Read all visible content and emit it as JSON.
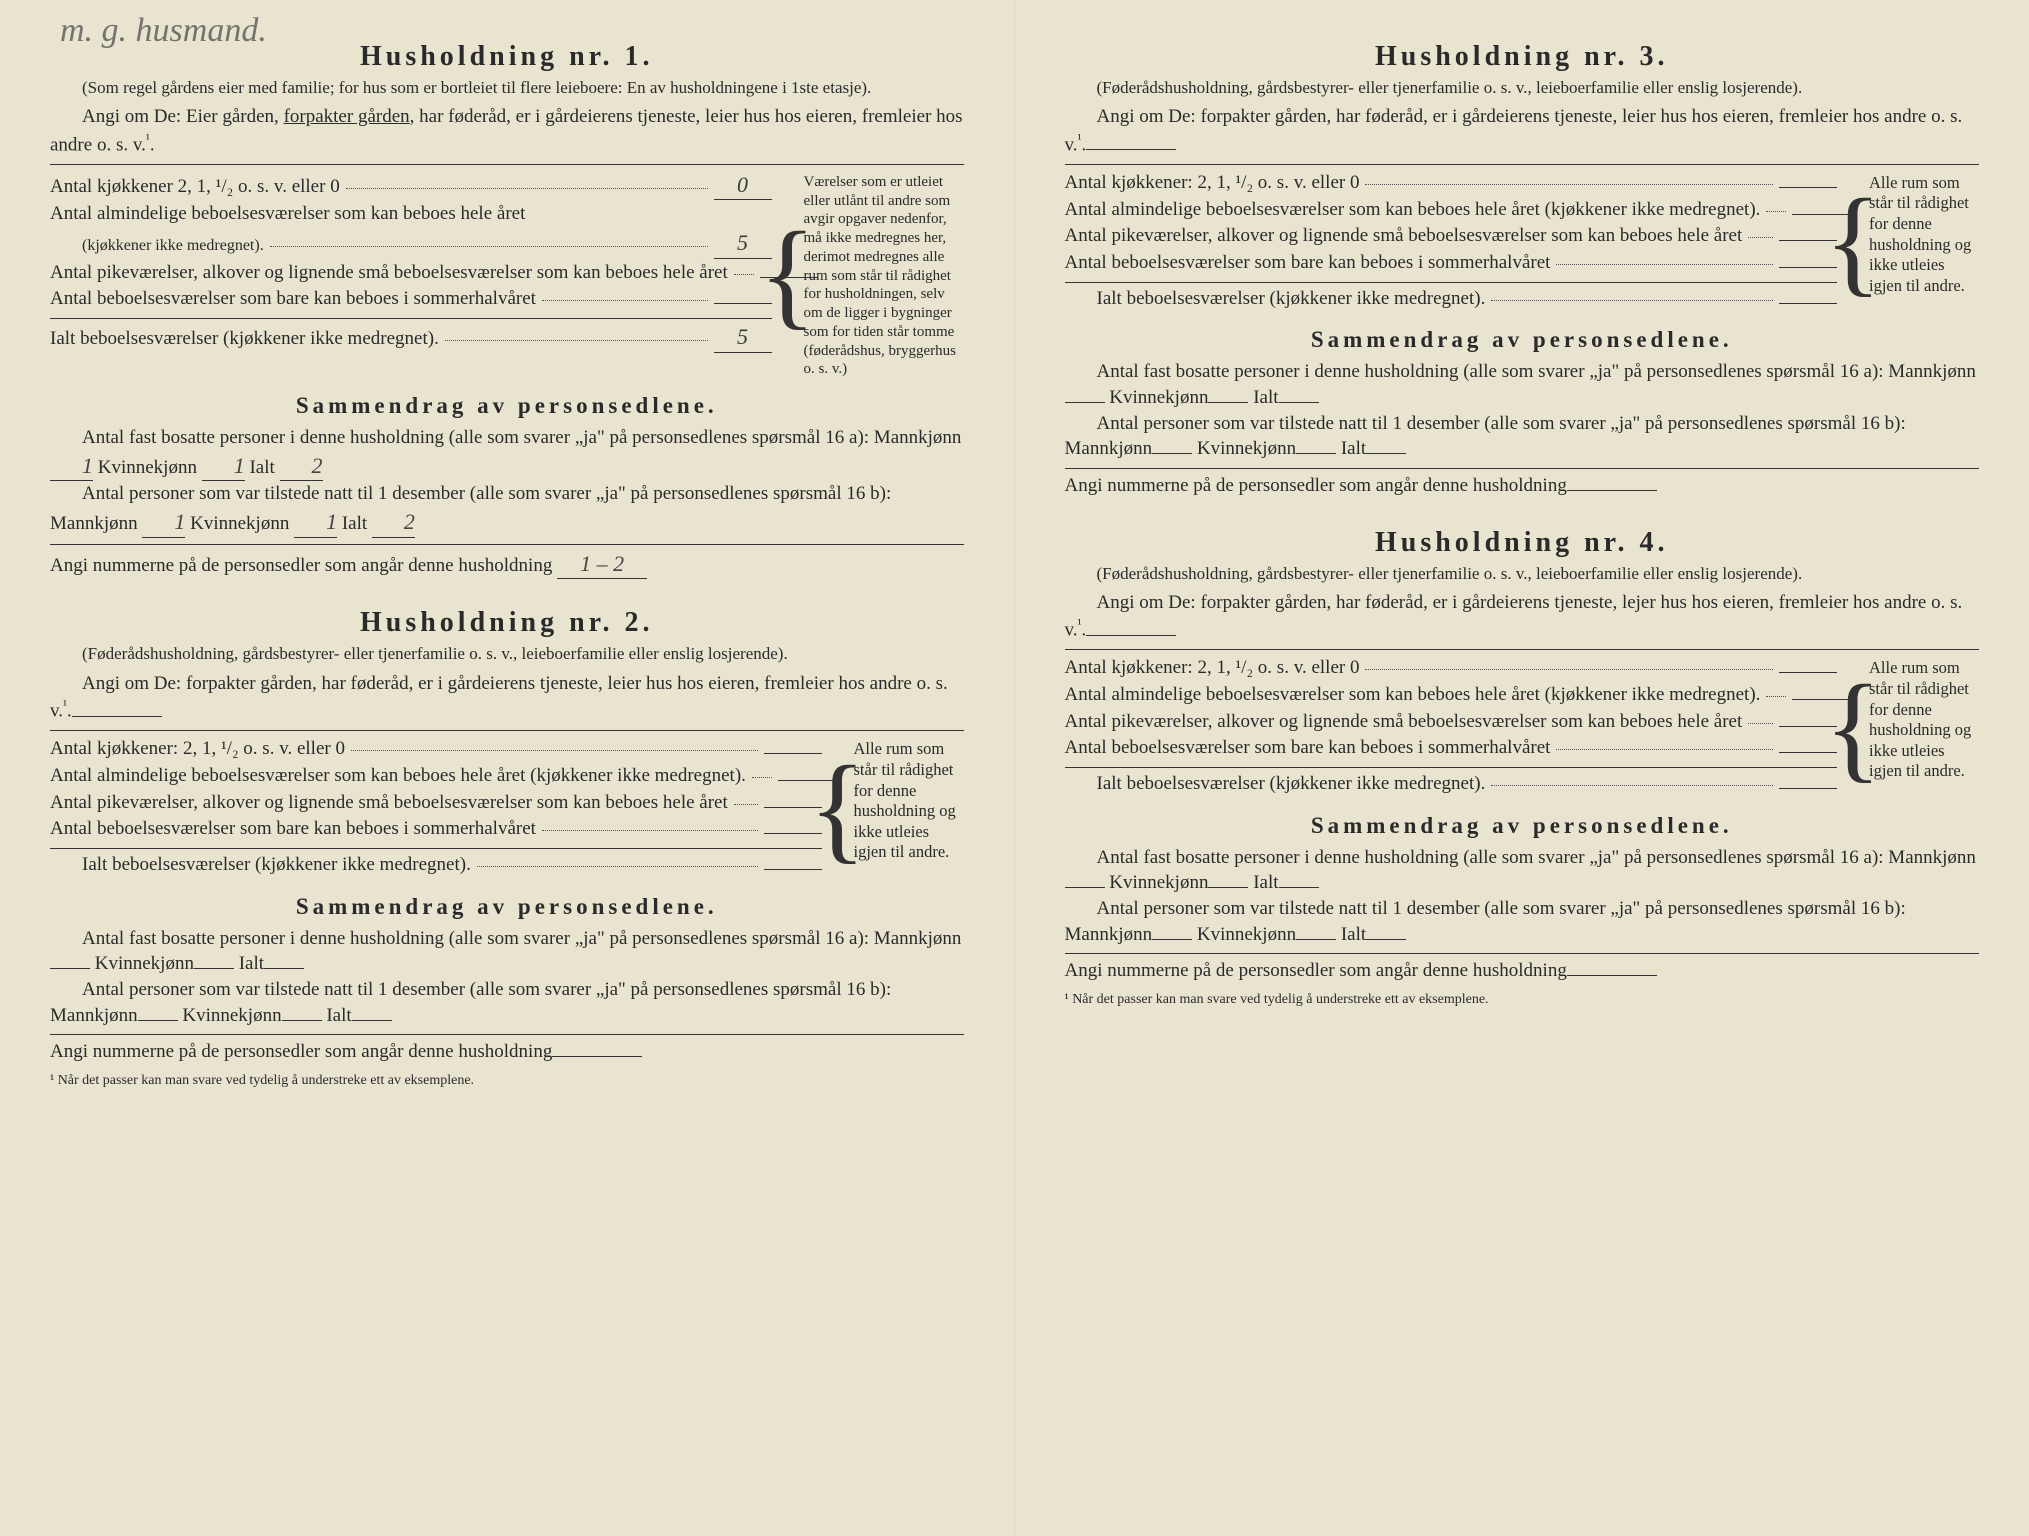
{
  "handwritten_annotation": "m. g. husmand.",
  "households": [
    {
      "title": "Husholdning nr. 1.",
      "subtitle": "(Som regel gårdens eier med familie; for hus som er bortleiet til flere leieboere: En av husholdningene i 1ste etasje).",
      "angi_prefix": "Angi om De:  Eier gården, ",
      "angi_underlined": "forpakter gården",
      "angi_suffix": ", har føderåd, er i gård­eierens tjeneste, leier hus hos eieren, fremleier hos andre o. s. v.",
      "kitchen_label": "Antal kjøkkener 2, 1, ¹/₂ o. s. v. eller 0",
      "kitchen_value": "0",
      "row_a": "Antal almindelige beboelsesværelser som kan beboes hele året",
      "row_a_note": "(kjøkkener ikke medregnet).",
      "row_a_value": "5",
      "row_b": "Antal pikeværelser, alkover og lignende små beboelsesværelser som kan beboes hele året",
      "row_b_value": "",
      "row_c": "Antal beboelsesværelser som bare kan beboes i sommerhalvåret",
      "row_c_value": "",
      "row_total": "Ialt beboelsesværelser (kjøkkener ikke medregnet).",
      "row_total_value": "5",
      "sidenote": "Værelser som er utleiet eller utlånt til andre som avgir opgaver nedenfor, må ikke medregnes her, derimot medregnes alle rum som står til rådighet for husholdningen, selv om de ligger i bygninger som for tiden står tomme (føderådshus, bryggerhus o. s. v.)",
      "summary_title": "Sammendrag av personsedlene.",
      "summary_line1_a": "Antal fast bosatte personer i denne husholdning (alle som svarer „ja\" på personsedlenes spørsmål 16 a): Mannkjønn",
      "summary_line1_m": "1",
      "summary_line1_b": "Kvinnekjønn",
      "summary_line1_k": "1",
      "summary_line1_c": "Ialt",
      "summary_line1_t": "2",
      "summary_line2_a": "Antal personer som var tilstede natt til 1 desember (alle som svarer „ja\" på personsedlenes spørsmål 16 b): Mannkjønn",
      "summary_line2_m": "1",
      "summary_line2_b": "Kvinnekjønn",
      "summary_line2_k": "1",
      "summary_line2_c": "Ialt",
      "summary_line2_t": "2",
      "nummerne_label": "Angi nummerne på de personsedler som angår denne husholdning",
      "nummerne_value": "1 – 2"
    },
    {
      "title": "Husholdning nr. 2.",
      "subtitle": "(Føderådshusholdning, gårdsbestyrer- eller tjenerfamilie o. s. v., leieboerfamilie eller enslig losjerende).",
      "angi_full": "Angi om De:  forpakter gården, har føderåd, er i gårdeierens tjeneste, leier hus hos eieren, fremleier hos andre o. s. v.",
      "kitchen_label": "Antal kjøkkener: 2, 1, ¹/₂ o. s. v. eller 0",
      "row_a": "Antal almindelige beboelsesværelser som kan beboes hele året (kjøkkener ikke medregnet).",
      "row_b": "Antal pikeværelser, alkover og lignende små beboelsesværelser som kan beboes hele året",
      "row_c": "Antal beboelsesværelser som bare kan beboes i sommerhalvåret",
      "row_total": "Ialt beboelsesværelser (kjøkkener ikke medregnet).",
      "sidenote": "Alle rum som står til rådighet for denne husholdning og ikke utleies igjen til andre.",
      "summary_title": "Sammendrag av personsedlene.",
      "summary_line1_a": "Antal fast bosatte personer i denne husholdning (alle som svarer „ja\" på personsedlenes spørsmål 16 a): Mannkjønn",
      "summary_line1_b": "Kvinnekjønn",
      "summary_line1_c": "Ialt",
      "summary_line2_a": "Antal personer som var tilstede natt til 1 desember (alle som svarer „ja\" på personsedlenes spørsmål 16 b): Mannkjønn",
      "summary_line2_b": "Kvinnekjønn",
      "summary_line2_c": "Ialt",
      "nummerne_label": "Angi nummerne på de personsedler som angår denne husholdning"
    },
    {
      "title": "Husholdning nr. 3.",
      "subtitle": "(Føderådshusholdning, gårdsbestyrer- eller tjenerfamilie o. s. v., leieboerfamilie eller enslig losjerende).",
      "angi_full": "Angi om De:  forpakter gården, har føderåd, er i gårdeierens tjeneste, leier hus hos eieren, fremleier hos andre o. s. v.",
      "kitchen_label": "Antal kjøkkener: 2, 1, ¹/₂ o. s. v. eller 0",
      "row_a": "Antal almindelige beboelsesværelser som kan beboes hele året (kjøkkener ikke medregnet).",
      "row_b": "Antal pikeværelser, alkover og lignende små beboelsesværelser som kan beboes hele året",
      "row_c": "Antal beboelsesværelser som bare kan beboes i sommerhalvåret",
      "row_total": "Ialt beboelsesværelser (kjøkkener ikke medregnet).",
      "sidenote": "Alle rum som står til rådighet for denne husholdning og ikke utleies igjen til andre.",
      "summary_title": "Sammendrag av personsedlene.",
      "summary_line1_a": "Antal fast bosatte personer i denne husholdning (alle som svarer „ja\" på personsedlenes spørsmål 16 a): Mannkjønn",
      "summary_line1_b": "Kvinnekjønn",
      "summary_line1_c": "Ialt",
      "summary_line2_a": "Antal personer som var tilstede natt til 1 desember (alle som svarer „ja\" på personsedlenes spørsmål 16 b): Mannkjønn",
      "summary_line2_b": "Kvinnekjønn",
      "summary_line2_c": "Ialt",
      "nummerne_label": "Angi nummerne på de personsedler som angår denne husholdning"
    },
    {
      "title": "Husholdning nr. 4.",
      "subtitle": "(Føderådshusholdning, gårdsbestyrer- eller tjenerfamilie o. s. v., leieboerfamilie eller enslig losjerende).",
      "angi_full": "Angi om De:  forpakter gården, har føderåd, er i gårdeierens tjeneste, lejer hus hos eieren, fremleier hos andre o. s. v.",
      "kitchen_label": "Antal kjøkkener: 2, 1, ¹/₂ o. s. v. eller 0",
      "row_a": "Antal almindelige beboelsesværelser som kan beboes hele året (kjøkkener ikke medregnet).",
      "row_b": "Antal pikeværelser, alkover og lignende små beboelsesværelser som kan beboes hele året",
      "row_c": "Antal beboelsesværelser som bare kan beboes i sommerhalvåret",
      "row_total": "Ialt beboelsesværelser (kjøkkener ikke medregnet).",
      "sidenote": "Alle rum som står til rådighet for denne husholdning og ikke utleies igjen til andre.",
      "summary_title": "Sammendrag av personsedlene.",
      "summary_line1_a": "Antal fast bosatte personer i denne husholdning (alle som svarer „ja\" på personsedlenes spørsmål 16 a): Mannkjønn",
      "summary_line1_b": "Kvinnekjønn",
      "summary_line1_c": "Ialt",
      "summary_line2_a": "Antal personer som var tilstede natt til 1 desember (alle som svarer „ja\" på personsedlenes spørsmål 16 b): Mannkjønn",
      "summary_line2_b": "Kvinnekjønn",
      "summary_line2_c": "Ialt",
      "nummerne_label": "Angi nummerne på de personsedler som angår denne husholdning"
    }
  ],
  "footnote": "¹ Når det passer kan man svare ved tydelig å understreke ett av eksemplene.",
  "colors": {
    "paper": "#e8e4d0",
    "ink": "#2a2a2a",
    "handwriting": "#444444"
  }
}
